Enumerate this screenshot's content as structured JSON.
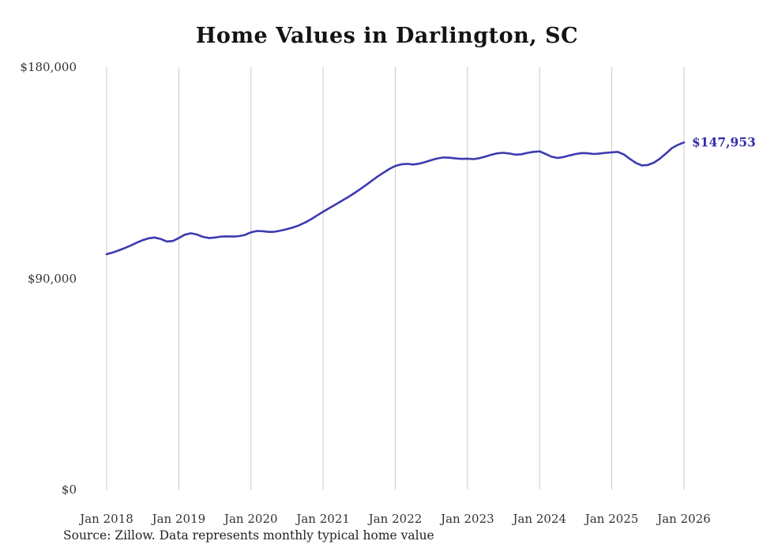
{
  "page": {
    "title": "Home Values in Darlington, SC",
    "source_note": "Source: Zillow. Data represents monthly typical home value"
  },
  "chart_data": {
    "type": "line",
    "title": "Home Values in Darlington, SC",
    "x_start": "Jan 2018",
    "x_interval": "monthly",
    "x_tick_labels": [
      "Jan 2018",
      "Jan 2019",
      "Jan 2020",
      "Jan 2021",
      "Jan 2022",
      "Jan 2023",
      "Jan 2024",
      "Jan 2025",
      "Jan 2026"
    ],
    "y_ticks": [
      {
        "value": 0,
        "label": "$0"
      },
      {
        "value": 90000,
        "label": "$90,000"
      },
      {
        "value": 180000,
        "label": "$180,000"
      }
    ],
    "ylim": [
      0,
      180000
    ],
    "grid": "vertical-only",
    "legend": "none",
    "series": [
      {
        "name": "Typical home value",
        "values": [
          100300,
          101000,
          101900,
          102900,
          104000,
          105200,
          106300,
          107100,
          107400,
          106800,
          105700,
          105900,
          107200,
          108600,
          109200,
          108700,
          107700,
          107200,
          107400,
          107800,
          107900,
          107800,
          108000,
          108500,
          109600,
          110200,
          110100,
          109800,
          109900,
          110400,
          111000,
          111700,
          112600,
          113800,
          115200,
          116800,
          118400,
          119900,
          121400,
          122900,
          124400,
          126000,
          127700,
          129500,
          131400,
          133300,
          135000,
          136600,
          137900,
          138600,
          138800,
          138500,
          138900,
          139600,
          140400,
          141100,
          141500,
          141400,
          141100,
          140900,
          141000,
          140800,
          141200,
          141900,
          142700,
          143300,
          143500,
          143200,
          142700,
          142900,
          143500,
          143900,
          144100,
          143000,
          141800,
          141300,
          141700,
          142400,
          143000,
          143400,
          143300,
          143000,
          143200,
          143500,
          143700,
          143900,
          142800,
          140900,
          139200,
          138100,
          138300,
          139300,
          141000,
          143200,
          145500,
          146900,
          147953
        ]
      }
    ],
    "end_value": 147953,
    "end_label": "$147,953",
    "line_color": "#3d3ab0",
    "end_label_color": "#332fa8",
    "grid_color": "#c9c9c9"
  }
}
